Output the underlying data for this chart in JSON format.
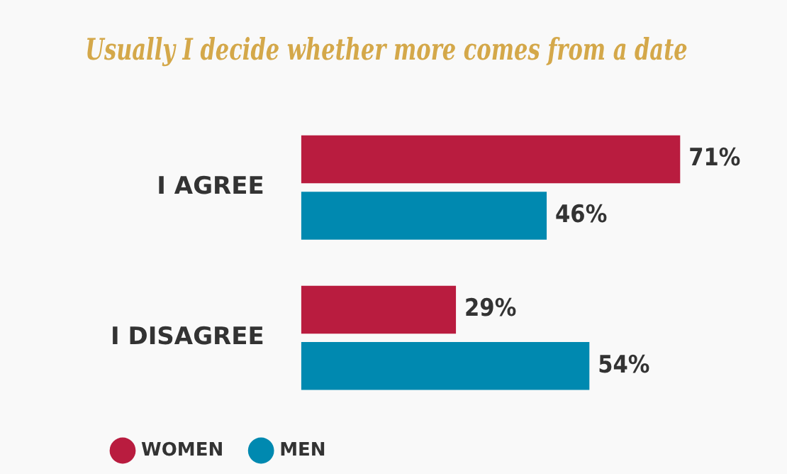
{
  "chart_data": {
    "type": "bar",
    "orientation": "horizontal",
    "title": "Usually I decide whether more comes from a date",
    "categories": [
      "I AGREE",
      "I DISAGREE"
    ],
    "series": [
      {
        "name": "WOMEN",
        "color": "#b91c3f",
        "values": [
          71,
          29
        ],
        "value_labels": [
          "71%",
          "29%"
        ]
      },
      {
        "name": "MEN",
        "color": "#0089b0",
        "values": [
          46,
          54
        ],
        "value_labels": [
          "46%",
          "54%"
        ]
      }
    ],
    "tick_labels": "y",
    "legend": "bottom left"
  }
}
